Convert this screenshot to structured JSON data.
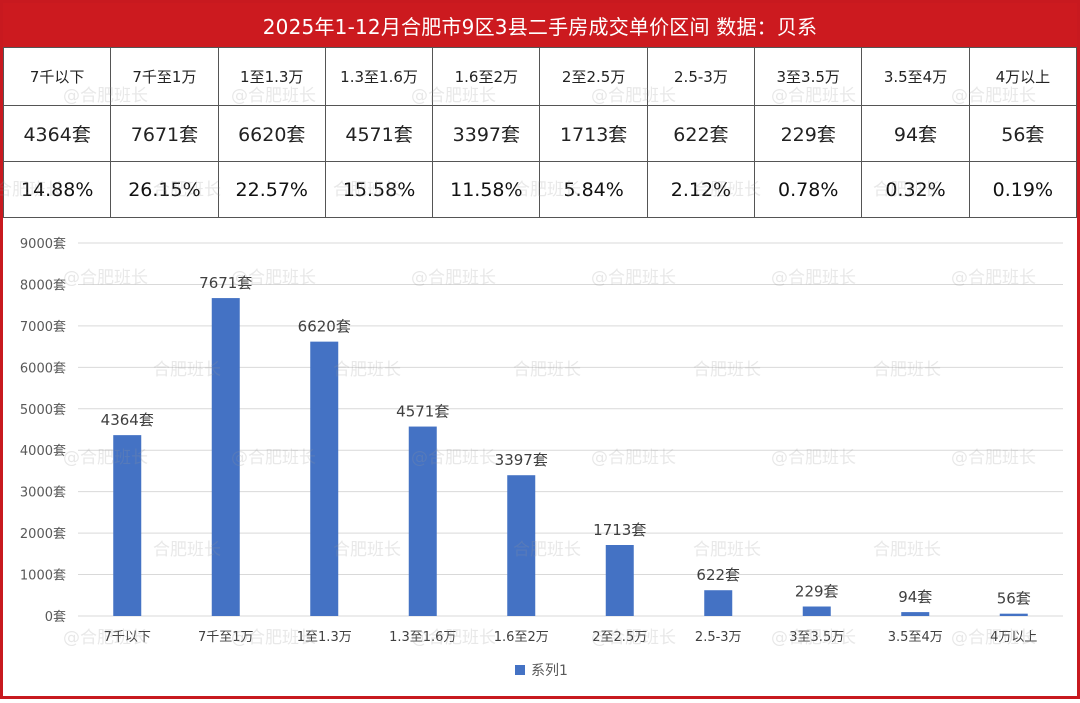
{
  "title": "2025年1-12月合肥市9区3县二手房成交单价区间 数据：贝系",
  "watermark": "@合肥班长",
  "watermark_alt": "合肥班长",
  "table": {
    "categories": [
      "7千以下",
      "7千至1万",
      "1至1.3万",
      "1.3至1.6万",
      "1.6至2万",
      "2至2.5万",
      "2.5-3万",
      "3至3.5万",
      "3.5至4万",
      "4万以上"
    ],
    "counts": [
      "4364套",
      "7671套",
      "6620套",
      "4571套",
      "3397套",
      "1713套",
      "622套",
      "229套",
      "94套",
      "56套"
    ],
    "percents": [
      "14.88%",
      "26.15%",
      "22.57%",
      "15.58%",
      "11.58%",
      "5.84%",
      "2.12%",
      "0.78%",
      "0.32%",
      "0.19%"
    ]
  },
  "chart_data": {
    "type": "bar",
    "categories": [
      "7千以下",
      "7千至1万",
      "1至1.3万",
      "1.3至1.6万",
      "1.6至2万",
      "2至2.5万",
      "2.5-3万",
      "3至3.5万",
      "3.5至4万",
      "4万以上"
    ],
    "series": [
      {
        "name": "系列1",
        "values": [
          4364,
          7671,
          6620,
          4571,
          3397,
          1713,
          622,
          229,
          94,
          56
        ]
      }
    ],
    "data_labels": [
      "4364套",
      "7671套",
      "6620套",
      "4571套",
      "3397套",
      "1713套",
      "622套",
      "229套",
      "94套",
      "56套"
    ],
    "y_ticks": [
      "0套",
      "1000套",
      "2000套",
      "3000套",
      "4000套",
      "5000套",
      "6000套",
      "7000套",
      "8000套",
      "9000套"
    ],
    "ylim": [
      0,
      9000
    ],
    "grid": true,
    "legend": "bottom",
    "bar_color": "#4472c4"
  }
}
